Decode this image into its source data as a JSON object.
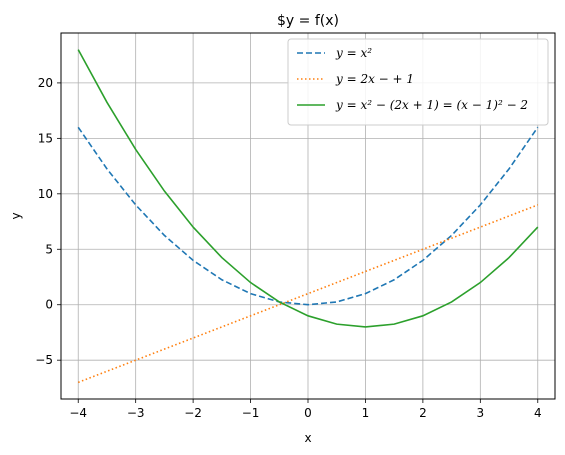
{
  "chart_data": {
    "type": "line",
    "title": "$y = f(x)",
    "xlabel": "x",
    "ylabel": "y",
    "xlim": [
      -4.3,
      4.3
    ],
    "ylim": [
      -8.5,
      24.5
    ],
    "xticks": [
      -4,
      -3,
      -2,
      -1,
      0,
      1,
      2,
      3,
      4
    ],
    "yticks": [
      -5,
      0,
      5,
      10,
      15,
      20
    ],
    "xtick_labels": [
      "−4",
      "−3",
      "−2",
      "−1",
      "0",
      "1",
      "2",
      "3",
      "4"
    ],
    "ytick_labels": [
      "−5",
      "0",
      "5",
      "10",
      "15",
      "20"
    ],
    "grid": true,
    "legend_position": "top-right",
    "series": [
      {
        "name": "y = x²",
        "color": "#1f77b4",
        "style": "dashed",
        "x": [
          -4,
          -3.5,
          -3,
          -2.5,
          -2,
          -1.5,
          -1,
          -0.5,
          0,
          0.5,
          1,
          1.5,
          2,
          2.5,
          3,
          3.5,
          4
        ],
        "y": [
          16,
          12.25,
          9,
          6.25,
          4,
          2.25,
          1,
          0.25,
          0,
          0.25,
          1,
          2.25,
          4,
          6.25,
          9,
          12.25,
          16
        ]
      },
      {
        "name": "y = 2x − + 1",
        "color": "#ff7f0e",
        "style": "dotted",
        "x": [
          -4,
          -3,
          -2,
          -1,
          0,
          1,
          2,
          3,
          4
        ],
        "y": [
          -7,
          -5,
          -3,
          -1,
          1,
          3,
          5,
          7,
          9
        ]
      },
      {
        "name": "y = x² − (2x + 1) = (x − 1)² − 2",
        "color": "#2ca02c",
        "style": "solid",
        "x": [
          -4,
          -3.5,
          -3,
          -2.5,
          -2,
          -1.5,
          -1,
          -0.5,
          0,
          0.5,
          1,
          1.5,
          2,
          2.5,
          3,
          3.5,
          4
        ],
        "y": [
          23,
          18.25,
          14,
          10.25,
          7,
          4.25,
          2,
          0.25,
          -1,
          -1.75,
          -2,
          -1.75,
          -1,
          0.25,
          2,
          4.25,
          7
        ]
      }
    ]
  }
}
